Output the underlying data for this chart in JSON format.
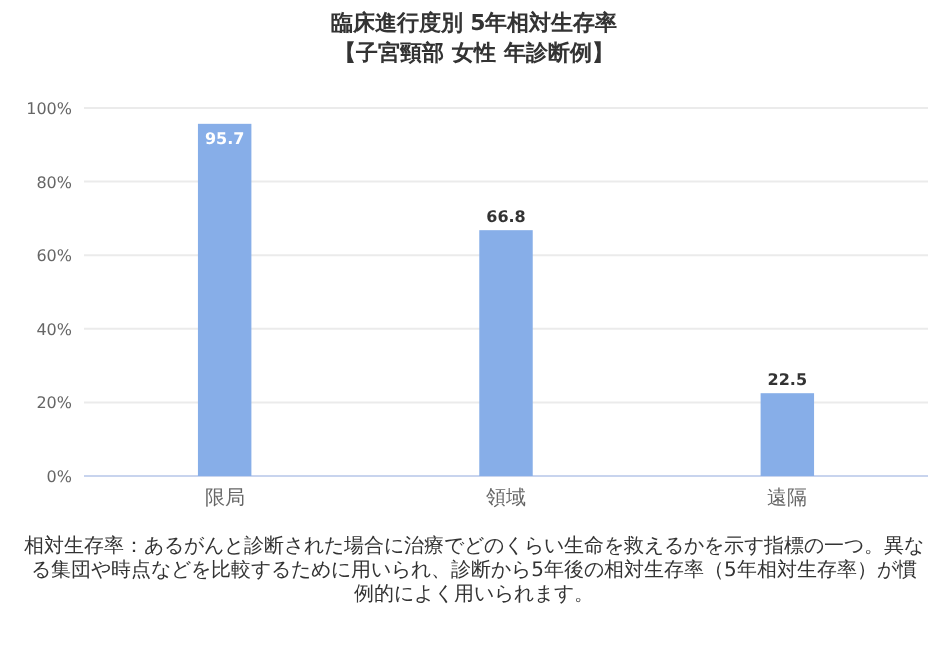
{
  "chart_data": {
    "type": "bar",
    "title": "臨床進行度別 5年相対生存率",
    "subtitle": "【子宮頸部 女性 年診断例】",
    "categories": [
      "限局",
      "領域",
      "遠隔"
    ],
    "values": [
      95.7,
      66.8,
      22.5
    ],
    "color": "#87aee8",
    "ylim": [
      0,
      100
    ],
    "yticks": [
      {
        "value": 0,
        "label": "0%"
      },
      {
        "value": 20,
        "label": "20%"
      },
      {
        "value": 40,
        "label": "40%"
      },
      {
        "value": 60,
        "label": "60%"
      },
      {
        "value": 80,
        "label": "80%"
      },
      {
        "value": 100,
        "label": "100%"
      }
    ],
    "grid": "y",
    "data_labels": true,
    "annotations": [
      "相対生存率：あるがんと診断された場合に治療でどのくらい生命を救えるかを示す指標の一つ。異なる集団や時点などを比較するために用いられ、診断から5年後の相対生存率（5年相対生存率）が慣例的によく用いられます。"
    ]
  }
}
